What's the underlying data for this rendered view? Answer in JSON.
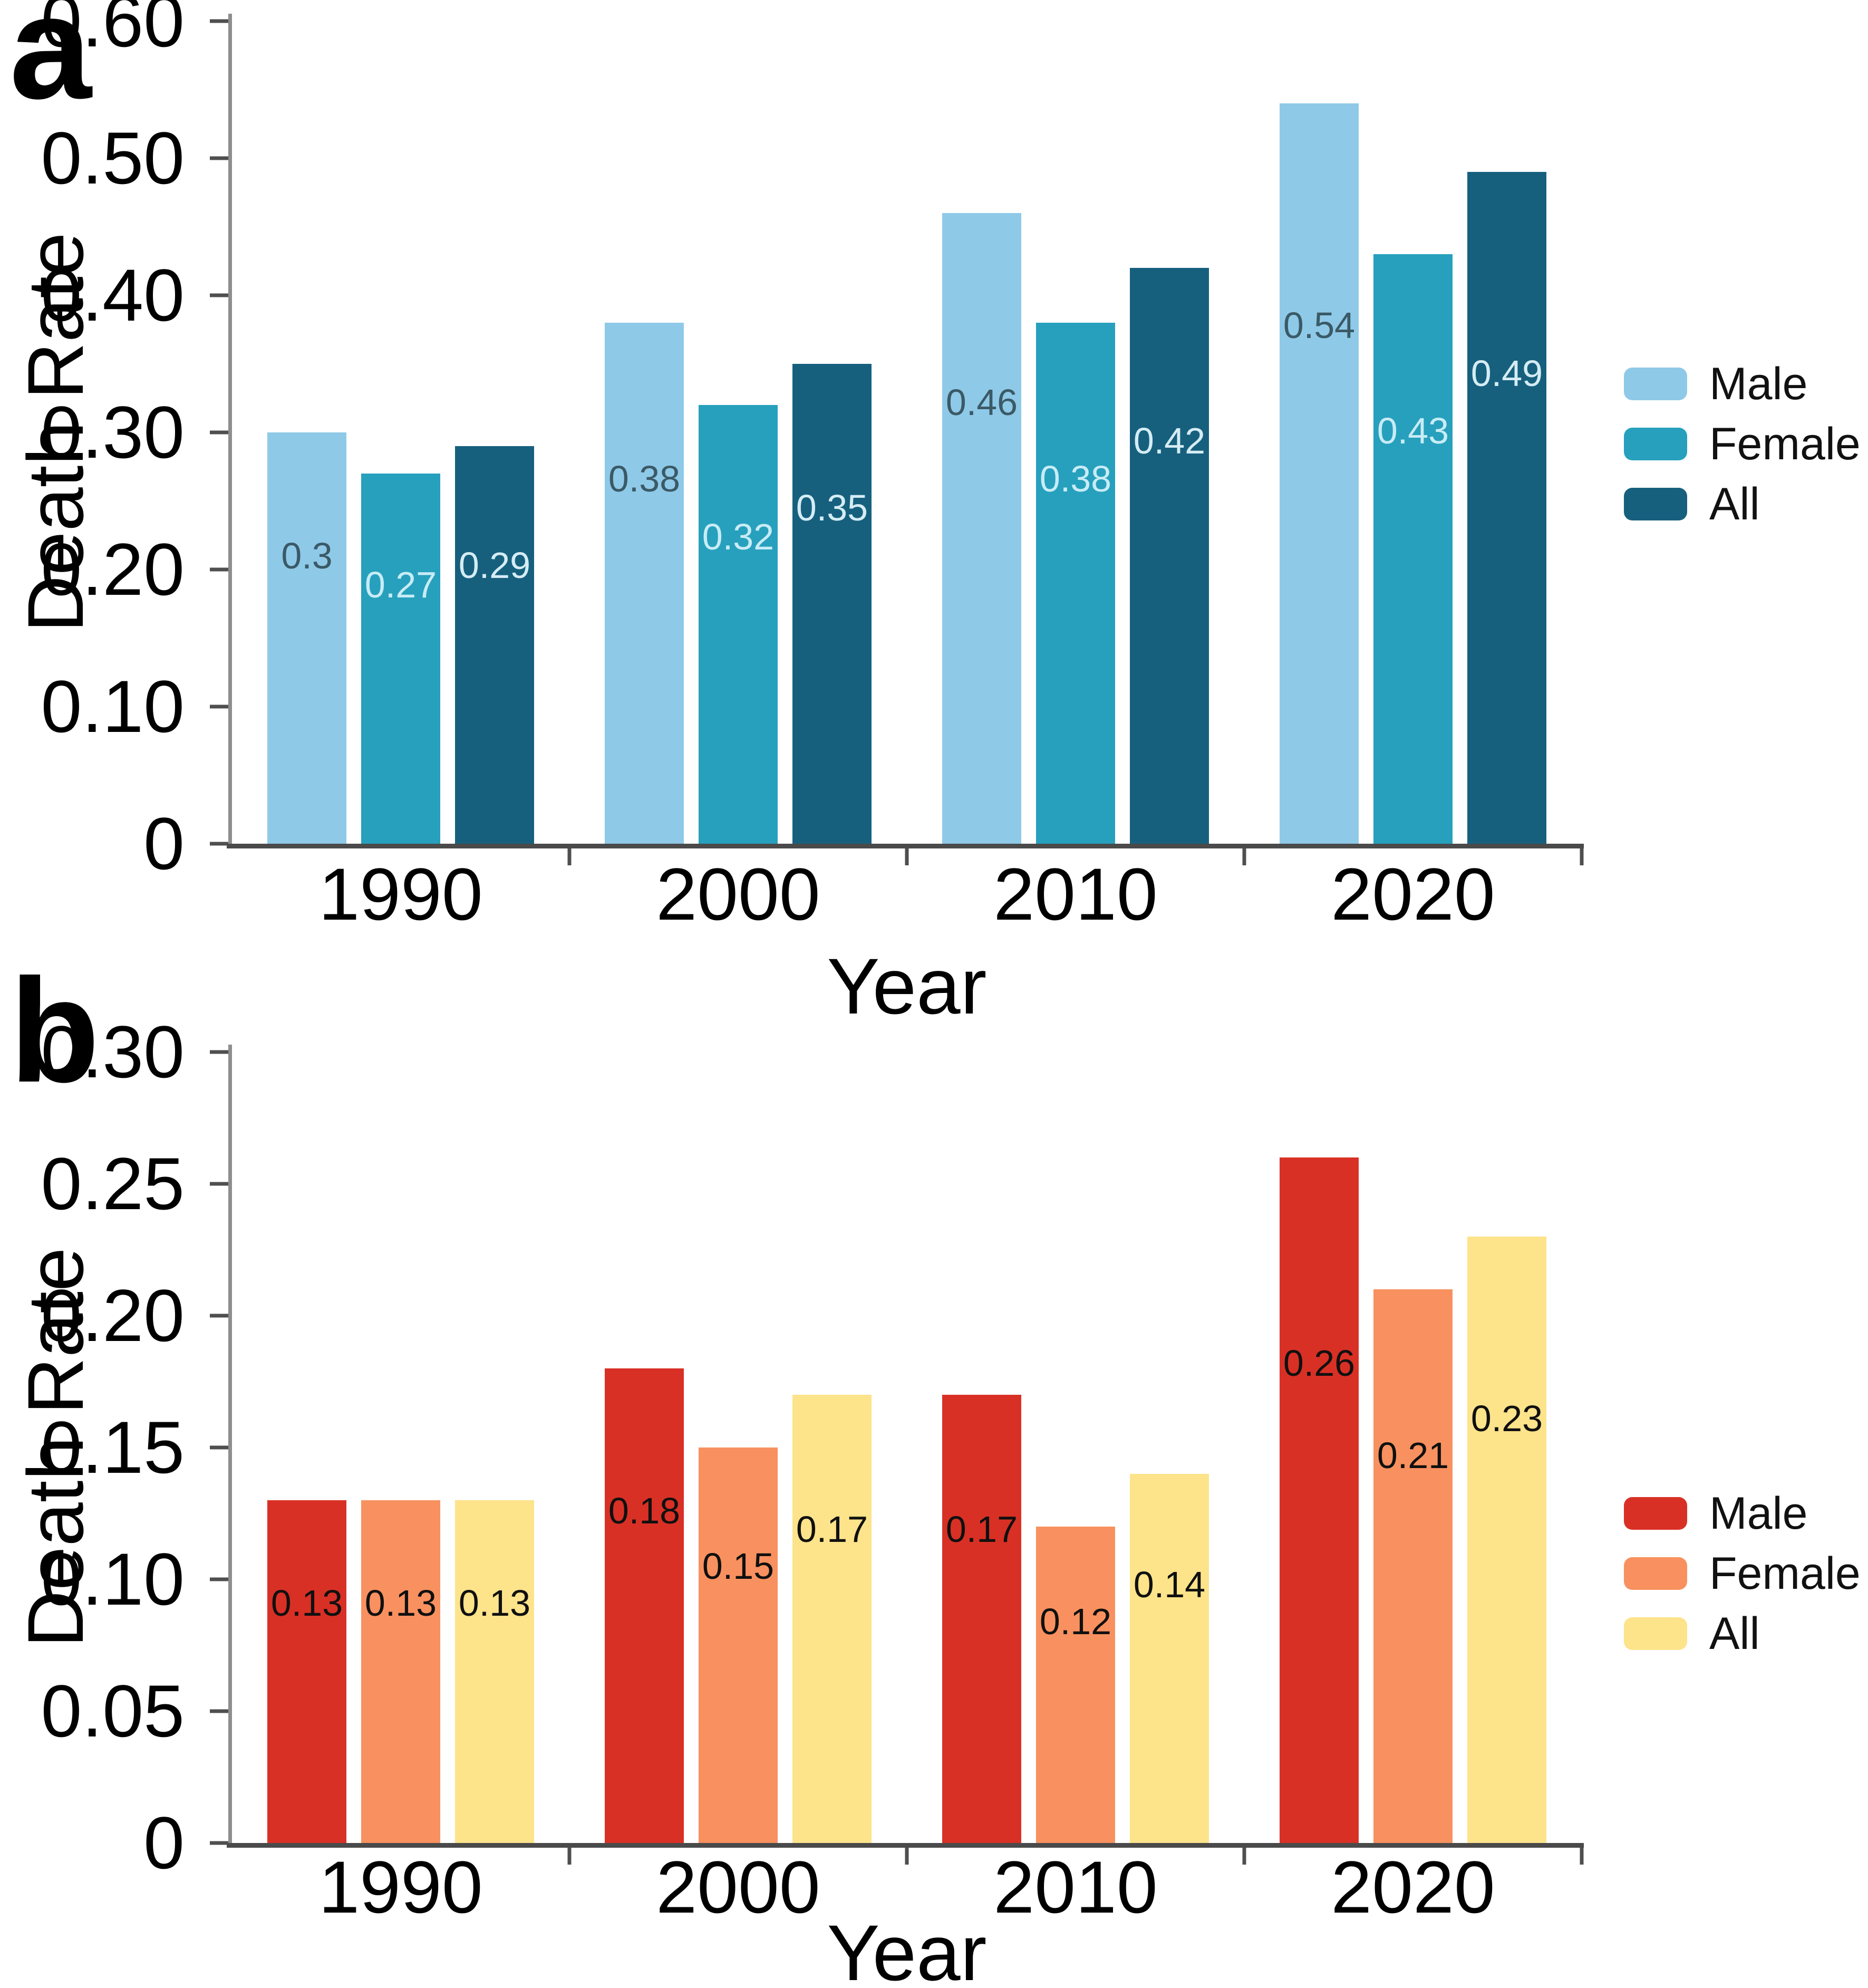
{
  "chart_data": [
    {
      "type": "bar",
      "panel_label": "a",
      "title": "",
      "xlabel": "Year",
      "ylabel": "Death Rate",
      "categories": [
        "1990",
        "2000",
        "2010",
        "2020"
      ],
      "series": [
        {
          "name": "Male",
          "color": "#8fc9e8",
          "value_label_color": "#3a5a66",
          "values": [
            0.3,
            0.38,
            0.46,
            0.54
          ],
          "value_labels": [
            "0.3",
            "0.38",
            "0.46",
            "0.54"
          ]
        },
        {
          "name": "Female",
          "color": "#27a0bd",
          "value_label_color": "#c8ecf6",
          "values": [
            0.27,
            0.32,
            0.38,
            0.43
          ],
          "value_labels": [
            "0.27",
            "0.32",
            "0.38",
            "0.43"
          ]
        },
        {
          "name": "All",
          "color": "#16607e",
          "value_label_color": "#d5ecf4",
          "values": [
            0.29,
            0.35,
            0.42,
            0.49
          ],
          "value_labels": [
            "0.29",
            "0.35",
            "0.42",
            "0.49"
          ]
        }
      ],
      "ylim": [
        0,
        0.6
      ],
      "ytick_labels": [
        "0",
        "0.10",
        "0.20",
        "0.30",
        "0.40",
        "0.50",
        "0.60"
      ],
      "legend_position": "center right",
      "grid": false
    },
    {
      "type": "bar",
      "panel_label": "b",
      "title": "",
      "xlabel": "Year",
      "ylabel": "Death Rate",
      "categories": [
        "1990",
        "2000",
        "2010",
        "2020"
      ],
      "series": [
        {
          "name": "Male",
          "color": "#d93025",
          "value_label_color": "#101010",
          "values": [
            0.13,
            0.18,
            0.17,
            0.26
          ],
          "value_labels": [
            "0.13",
            "0.18",
            "0.17",
            "0.26"
          ]
        },
        {
          "name": "Female",
          "color": "#f8915f",
          "value_label_color": "#101010",
          "values": [
            0.13,
            0.15,
            0.12,
            0.21
          ],
          "value_labels": [
            "0.13",
            "0.15",
            "0.12",
            "0.21"
          ]
        },
        {
          "name": "All",
          "color": "#fde38a",
          "value_label_color": "#101010",
          "values": [
            0.13,
            0.17,
            0.14,
            0.23
          ],
          "value_labels": [
            "0.13",
            "0.17",
            "0.14",
            "0.23"
          ]
        }
      ],
      "ylim": [
        0,
        0.3
      ],
      "ytick_labels": [
        "0",
        "0.05",
        "0.10",
        "0.15",
        "0.20",
        "0.25",
        "0.30"
      ],
      "legend_position": "center right",
      "grid": false
    }
  ]
}
